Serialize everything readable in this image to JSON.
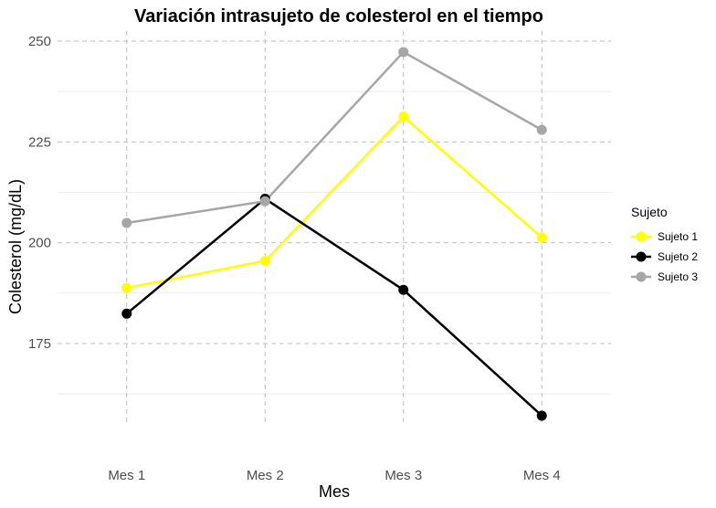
{
  "chart_data": {
    "type": "line",
    "title": "Variación intrasujeto de colesterol en el tiempo",
    "xlabel": "Mes",
    "ylabel": "Colesterol (mg/dL)",
    "categories": [
      "Mes 1",
      "Mes 2",
      "Mes 3",
      "Mes 4"
    ],
    "yticks": [
      175,
      200,
      225,
      250
    ],
    "ylim": [
      155.5,
      252.5
    ],
    "grid": true,
    "legend": {
      "title": "Sujeto",
      "position": "right"
    },
    "series": [
      {
        "name": "Sujeto 1",
        "color": "#FFFF00",
        "values": [
          188.8,
          195.5,
          231.3,
          201.3
        ]
      },
      {
        "name": "Sujeto 2",
        "color": "#000000",
        "values": [
          182.4,
          210.9,
          188.3,
          157.1
        ]
      },
      {
        "name": "Sujeto 3",
        "color": "#A6A6A6",
        "values": [
          204.9,
          210.3,
          247.3,
          228.0
        ]
      }
    ]
  }
}
